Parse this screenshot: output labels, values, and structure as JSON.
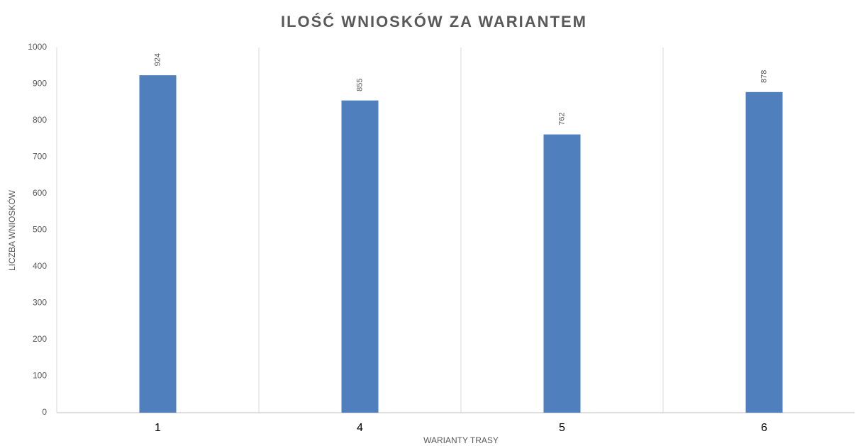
{
  "chart_data": {
    "type": "bar",
    "title": "ILOŚĆ WNIOSKÓW ZA WARIANTEM",
    "x_label": "WARIANTY TRASY",
    "y_label": "LICZBA WNIOSKÓW",
    "categories": [
      "1",
      "4",
      "5",
      "6"
    ],
    "values": [
      924,
      855,
      762,
      878
    ],
    "color": "#4f7fbc",
    "ylim": [
      0,
      1000
    ],
    "yticks": [
      0,
      100,
      200,
      300,
      400,
      500,
      600,
      700,
      800,
      900,
      1000
    ]
  }
}
